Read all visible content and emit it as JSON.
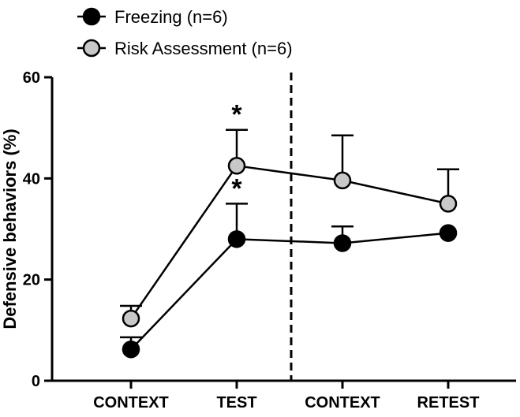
{
  "chart_data": {
    "type": "line",
    "title": "",
    "xlabel": "",
    "ylabel": "Defensive behaviors (%)",
    "ylim": [
      0,
      60
    ],
    "yticks": [
      "0",
      "20",
      "40",
      "60"
    ],
    "categories": [
      "CONTEXT",
      "TEST",
      "CONTEXT",
      "RETEST"
    ],
    "series": [
      {
        "name": "Freezing (n=6)",
        "color": "#000000",
        "values": [
          6.2,
          28.0,
          27.2,
          29.2
        ],
        "errors": [
          2.4,
          7.0,
          3.3,
          0
        ]
      },
      {
        "name": "Risk Assessment (n=6)",
        "color": "#c8c8c8",
        "values": [
          12.3,
          42.5,
          39.6,
          35.0
        ],
        "errors": [
          2.5,
          7.1,
          8.9,
          6.8
        ]
      }
    ],
    "annotations": [
      {
        "text": "*",
        "category_index": 1,
        "series_index": 0
      },
      {
        "text": "*",
        "category_index": 1,
        "series_index": 1
      }
    ],
    "divider_after_category_index": 1,
    "legend_position": "top-left",
    "grid": false
  }
}
